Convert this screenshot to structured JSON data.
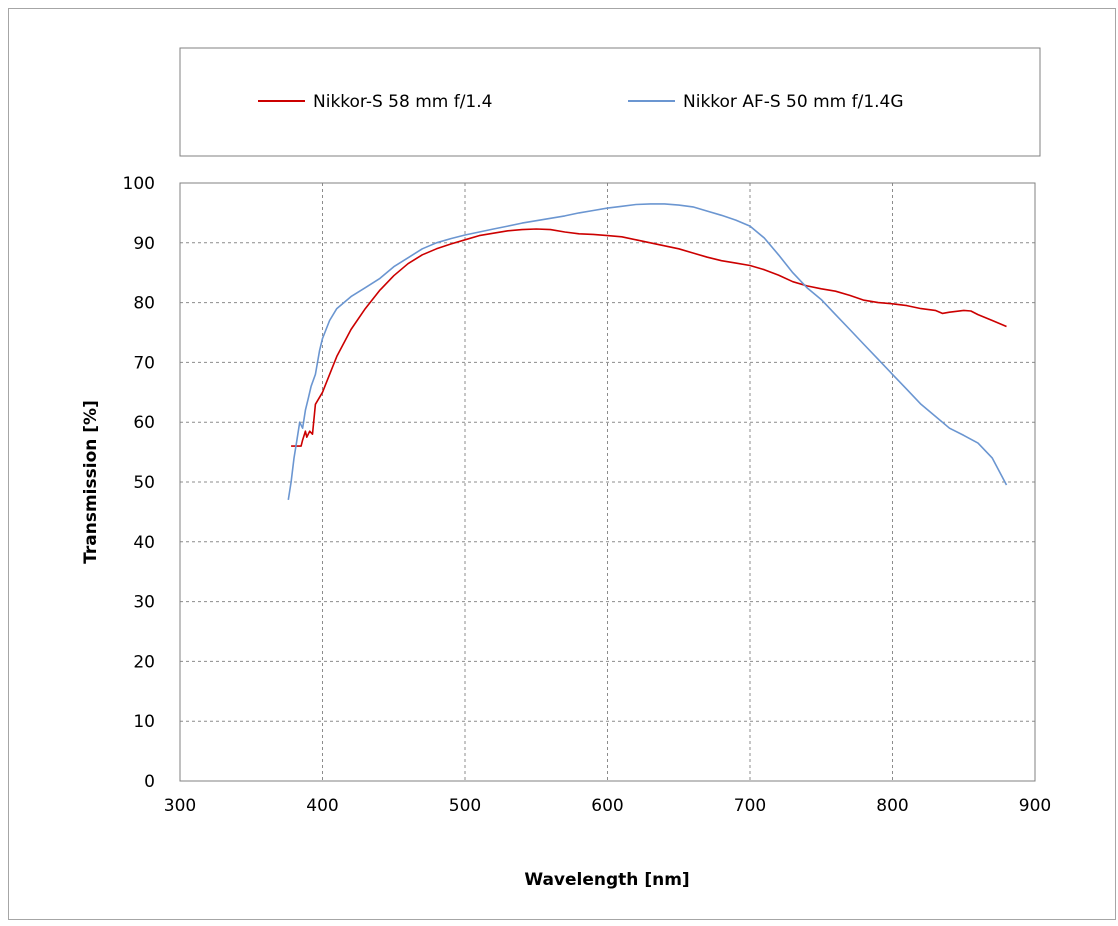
{
  "chart_data": {
    "type": "line",
    "title": "",
    "xlabel": "Wavelength [nm]",
    "ylabel": "Transmission [%]",
    "xlim": [
      300,
      900
    ],
    "ylim": [
      0,
      100
    ],
    "xticks": [
      300,
      400,
      500,
      600,
      700,
      800,
      900
    ],
    "yticks": [
      0,
      10,
      20,
      30,
      40,
      50,
      60,
      70,
      80,
      90,
      100
    ],
    "grid": true,
    "legend_position": "top",
    "series": [
      {
        "name": "Nikkor-S 58 mm  f/1.4",
        "color": "#cc0000",
        "points": [
          [
            378,
            56
          ],
          [
            385,
            56
          ],
          [
            386,
            57
          ],
          [
            388,
            58.5
          ],
          [
            389,
            57.5
          ],
          [
            391,
            58.5
          ],
          [
            393,
            58
          ],
          [
            395,
            63
          ],
          [
            400,
            65
          ],
          [
            405,
            68
          ],
          [
            410,
            71
          ],
          [
            420,
            75.5
          ],
          [
            430,
            79
          ],
          [
            440,
            82
          ],
          [
            450,
            84.5
          ],
          [
            460,
            86.5
          ],
          [
            470,
            88
          ],
          [
            480,
            89
          ],
          [
            490,
            89.8
          ],
          [
            500,
            90.5
          ],
          [
            510,
            91.2
          ],
          [
            520,
            91.6
          ],
          [
            530,
            92
          ],
          [
            540,
            92.2
          ],
          [
            550,
            92.3
          ],
          [
            560,
            92.2
          ],
          [
            570,
            91.8
          ],
          [
            580,
            91.5
          ],
          [
            590,
            91.4
          ],
          [
            600,
            91.2
          ],
          [
            610,
            91
          ],
          [
            620,
            90.5
          ],
          [
            630,
            90
          ],
          [
            640,
            89.5
          ],
          [
            650,
            89
          ],
          [
            660,
            88.3
          ],
          [
            670,
            87.6
          ],
          [
            680,
            87
          ],
          [
            690,
            86.6
          ],
          [
            700,
            86.2
          ],
          [
            710,
            85.5
          ],
          [
            720,
            84.6
          ],
          [
            730,
            83.5
          ],
          [
            740,
            82.8
          ],
          [
            750,
            82.3
          ],
          [
            760,
            81.9
          ],
          [
            770,
            81.2
          ],
          [
            780,
            80.4
          ],
          [
            790,
            80
          ],
          [
            800,
            79.8
          ],
          [
            810,
            79.5
          ],
          [
            820,
            79
          ],
          [
            830,
            78.7
          ],
          [
            835,
            78.2
          ],
          [
            840,
            78.4
          ],
          [
            850,
            78.7
          ],
          [
            855,
            78.6
          ],
          [
            860,
            78
          ],
          [
            870,
            77
          ],
          [
            880,
            76
          ]
        ]
      },
      {
        "name": "Nikkor AF-S 50 mm f/1.4G",
        "color": "#6b96d1",
        "points": [
          [
            376,
            47
          ],
          [
            378,
            50
          ],
          [
            380,
            54
          ],
          [
            382,
            57
          ],
          [
            384,
            60
          ],
          [
            386,
            59
          ],
          [
            388,
            62
          ],
          [
            390,
            64
          ],
          [
            392,
            66
          ],
          [
            395,
            68
          ],
          [
            398,
            72
          ],
          [
            400,
            74
          ],
          [
            405,
            77
          ],
          [
            410,
            79
          ],
          [
            415,
            80
          ],
          [
            420,
            81
          ],
          [
            430,
            82.5
          ],
          [
            440,
            84
          ],
          [
            450,
            86
          ],
          [
            460,
            87.5
          ],
          [
            470,
            89
          ],
          [
            480,
            90
          ],
          [
            490,
            90.7
          ],
          [
            500,
            91.3
          ],
          [
            510,
            91.8
          ],
          [
            520,
            92.3
          ],
          [
            530,
            92.8
          ],
          [
            540,
            93.3
          ],
          [
            550,
            93.7
          ],
          [
            560,
            94.1
          ],
          [
            570,
            94.5
          ],
          [
            580,
            95
          ],
          [
            590,
            95.4
          ],
          [
            600,
            95.8
          ],
          [
            610,
            96.1
          ],
          [
            620,
            96.4
          ],
          [
            630,
            96.5
          ],
          [
            640,
            96.5
          ],
          [
            650,
            96.3
          ],
          [
            660,
            96
          ],
          [
            670,
            95.3
          ],
          [
            680,
            94.6
          ],
          [
            690,
            93.8
          ],
          [
            700,
            92.8
          ],
          [
            710,
            90.8
          ],
          [
            720,
            88
          ],
          [
            730,
            85
          ],
          [
            740,
            82.5
          ],
          [
            750,
            80.5
          ],
          [
            760,
            78
          ],
          [
            770,
            75.5
          ],
          [
            780,
            73
          ],
          [
            790,
            70.5
          ],
          [
            800,
            68
          ],
          [
            810,
            65.5
          ],
          [
            820,
            63
          ],
          [
            830,
            61
          ],
          [
            840,
            59
          ],
          [
            850,
            57.8
          ],
          [
            860,
            56.5
          ],
          [
            870,
            54
          ],
          [
            880,
            49.5
          ]
        ]
      }
    ]
  }
}
